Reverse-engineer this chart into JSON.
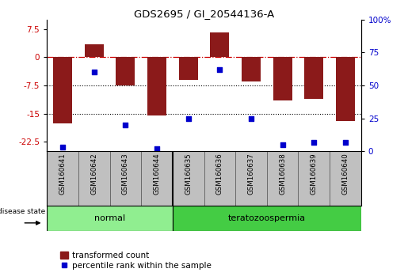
{
  "title": "GDS2695 / GI_20544136-A",
  "samples": [
    "GSM160641",
    "GSM160642",
    "GSM160643",
    "GSM160644",
    "GSM160635",
    "GSM160636",
    "GSM160637",
    "GSM160638",
    "GSM160639",
    "GSM160640"
  ],
  "bar_values": [
    -17.5,
    3.5,
    -7.5,
    -15.5,
    -6.0,
    6.5,
    -6.5,
    -11.5,
    -11.0,
    -17.0
  ],
  "percentile_values": [
    3,
    60,
    20,
    2,
    25,
    62,
    25,
    5,
    7,
    7
  ],
  "ylim_left": [
    -25,
    10
  ],
  "ylim_right": [
    0,
    100
  ],
  "left_yticks": [
    7.5,
    0,
    -7.5,
    -15,
    -22.5
  ],
  "right_yticks": [
    100,
    75,
    50,
    25,
    0
  ],
  "bar_color": "#8B1A1A",
  "dot_color": "#0000CC",
  "zero_line_color": "#CC0000",
  "grid_line_color": "#000000",
  "group_normal_color": "#90EE90",
  "group_teratozoospermia_color": "#44CC44",
  "group_bar_color": "#C0C0C0",
  "legend_bar_label": "transformed count",
  "legend_dot_label": "percentile rank within the sample",
  "disease_state_label": "disease state",
  "normal_label": "normal",
  "teratozoospermia_label": "teratozoospermia"
}
